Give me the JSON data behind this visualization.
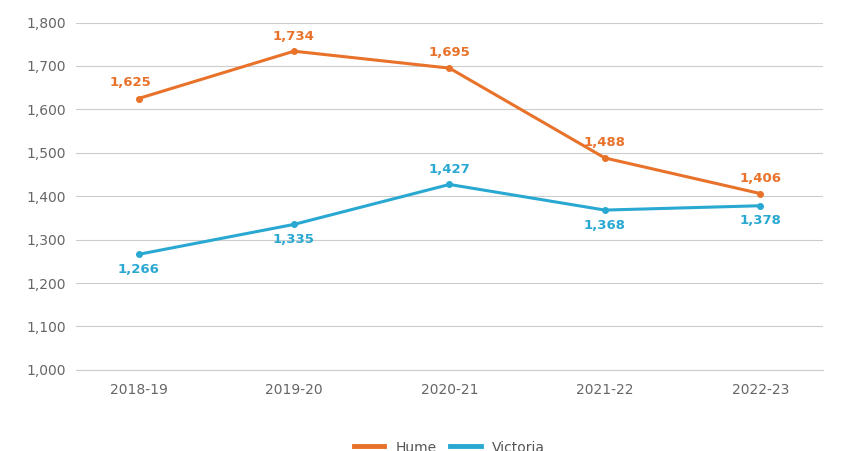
{
  "years": [
    "2018-19",
    "2019-20",
    "2020-21",
    "2021-22",
    "2022-23"
  ],
  "hume_values": [
    1625,
    1734,
    1695,
    1488,
    1406
  ],
  "victoria_values": [
    1266,
    1335,
    1427,
    1368,
    1378
  ],
  "hume_color": "#E8722A",
  "victoria_color": "#29A8D1",
  "hume_label": "Hume",
  "victoria_label": "Victoria",
  "ylim": [
    1000,
    1800
  ],
  "yticks": [
    1000,
    1100,
    1200,
    1300,
    1400,
    1500,
    1600,
    1700,
    1800
  ],
  "background_color": "#ffffff",
  "grid_color": "#cccccc",
  "annotation_fontsize": 9.5,
  "legend_fontsize": 10,
  "tick_fontsize": 10,
  "line_width": 2.2,
  "marker_size": 4
}
